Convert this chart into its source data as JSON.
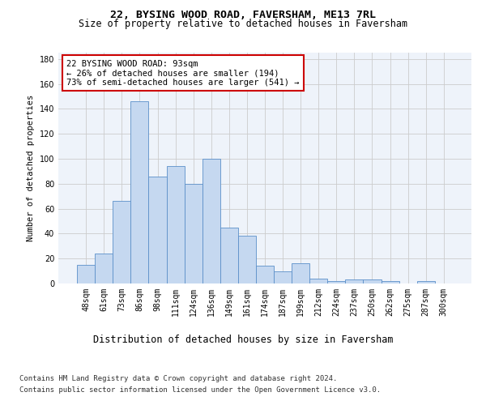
{
  "title": "22, BYSING WOOD ROAD, FAVERSHAM, ME13 7RL",
  "subtitle": "Size of property relative to detached houses in Faversham",
  "xlabel": "Distribution of detached houses by size in Faversham",
  "ylabel": "Number of detached properties",
  "bar_labels": [
    "48sqm",
    "61sqm",
    "73sqm",
    "86sqm",
    "98sqm",
    "111sqm",
    "124sqm",
    "136sqm",
    "149sqm",
    "161sqm",
    "174sqm",
    "187sqm",
    "199sqm",
    "212sqm",
    "224sqm",
    "237sqm",
    "250sqm",
    "262sqm",
    "275sqm",
    "287sqm",
    "300sqm"
  ],
  "bar_values": [
    15,
    24,
    66,
    146,
    86,
    94,
    80,
    100,
    45,
    38,
    14,
    10,
    16,
    4,
    2,
    3,
    3,
    2,
    0,
    2,
    0
  ],
  "bar_color": "#c5d8f0",
  "bar_edge_color": "#5b8fc9",
  "annotation_text": "22 BYSING WOOD ROAD: 93sqm\n← 26% of detached houses are smaller (194)\n73% of semi-detached houses are larger (541) →",
  "annotation_box_color": "#ffffff",
  "annotation_box_edge_color": "#cc0000",
  "ylim": [
    0,
    185
  ],
  "yticks": [
    0,
    20,
    40,
    60,
    80,
    100,
    120,
    140,
    160,
    180
  ],
  "grid_color": "#cccccc",
  "bg_color": "#eef3fa",
  "footer_line1": "Contains HM Land Registry data © Crown copyright and database right 2024.",
  "footer_line2": "Contains public sector information licensed under the Open Government Licence v3.0.",
  "title_fontsize": 9.5,
  "subtitle_fontsize": 8.5,
  "xlabel_fontsize": 8.5,
  "ylabel_fontsize": 7.5,
  "tick_fontsize": 7,
  "annotation_fontsize": 7.5,
  "footer_fontsize": 6.5
}
